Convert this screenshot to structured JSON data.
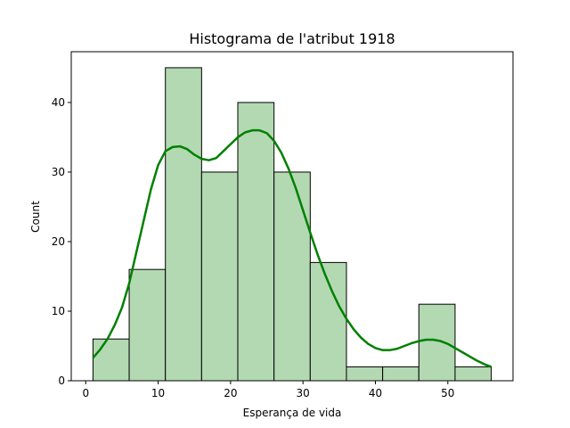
{
  "chart_data": {
    "type": "bar",
    "title": "Histograma de l'atribut 1918",
    "xlabel": "Esperança de vida",
    "ylabel": "Count",
    "xlim": [
      -2,
      59
    ],
    "ylim": [
      0,
      47.3
    ],
    "xticks": [
      0,
      10,
      20,
      30,
      40,
      50
    ],
    "yticks": [
      0,
      10,
      20,
      30,
      40
    ],
    "bin_edges": [
      1.0,
      6.0,
      11.0,
      16.0,
      21.0,
      26.0,
      31.0,
      36.0,
      41.0,
      46.0,
      51.0,
      56.0
    ],
    "values": [
      6,
      16,
      45,
      30,
      40,
      30,
      17,
      2,
      2,
      11,
      2
    ],
    "kde": {
      "x": [
        1,
        2,
        3,
        4,
        5,
        6,
        7,
        8,
        9,
        10,
        11,
        12,
        13,
        14,
        15,
        16,
        17,
        18,
        19,
        20,
        21,
        22,
        23,
        24,
        25,
        26,
        27,
        28,
        29,
        30,
        31,
        32,
        33,
        34,
        35,
        36,
        37,
        38,
        39,
        40,
        41,
        42,
        43,
        44,
        45,
        46,
        47,
        48,
        49,
        50,
        51,
        52,
        53,
        54,
        55,
        56
      ],
      "y": [
        3.3,
        4.5,
        6.0,
        8.0,
        10.5,
        14.0,
        18.5,
        23.0,
        27.5,
        31.0,
        33.0,
        33.6,
        33.7,
        33.3,
        32.5,
        31.9,
        31.7,
        32.0,
        33.0,
        34.0,
        35.0,
        35.7,
        36.0,
        36.0,
        35.6,
        34.5,
        32.8,
        30.5,
        27.7,
        24.5,
        21.3,
        18.2,
        15.4,
        12.9,
        10.7,
        8.9,
        7.4,
        6.2,
        5.3,
        4.7,
        4.4,
        4.4,
        4.6,
        5.0,
        5.4,
        5.7,
        5.9,
        5.9,
        5.7,
        5.3,
        4.7,
        4.1,
        3.5,
        2.9,
        2.4,
        2.0
      ]
    },
    "colors": {
      "bar_fill": "#b3d9b3",
      "bar_edge": "#000000",
      "kde_line": "#008000"
    },
    "grid": false
  }
}
